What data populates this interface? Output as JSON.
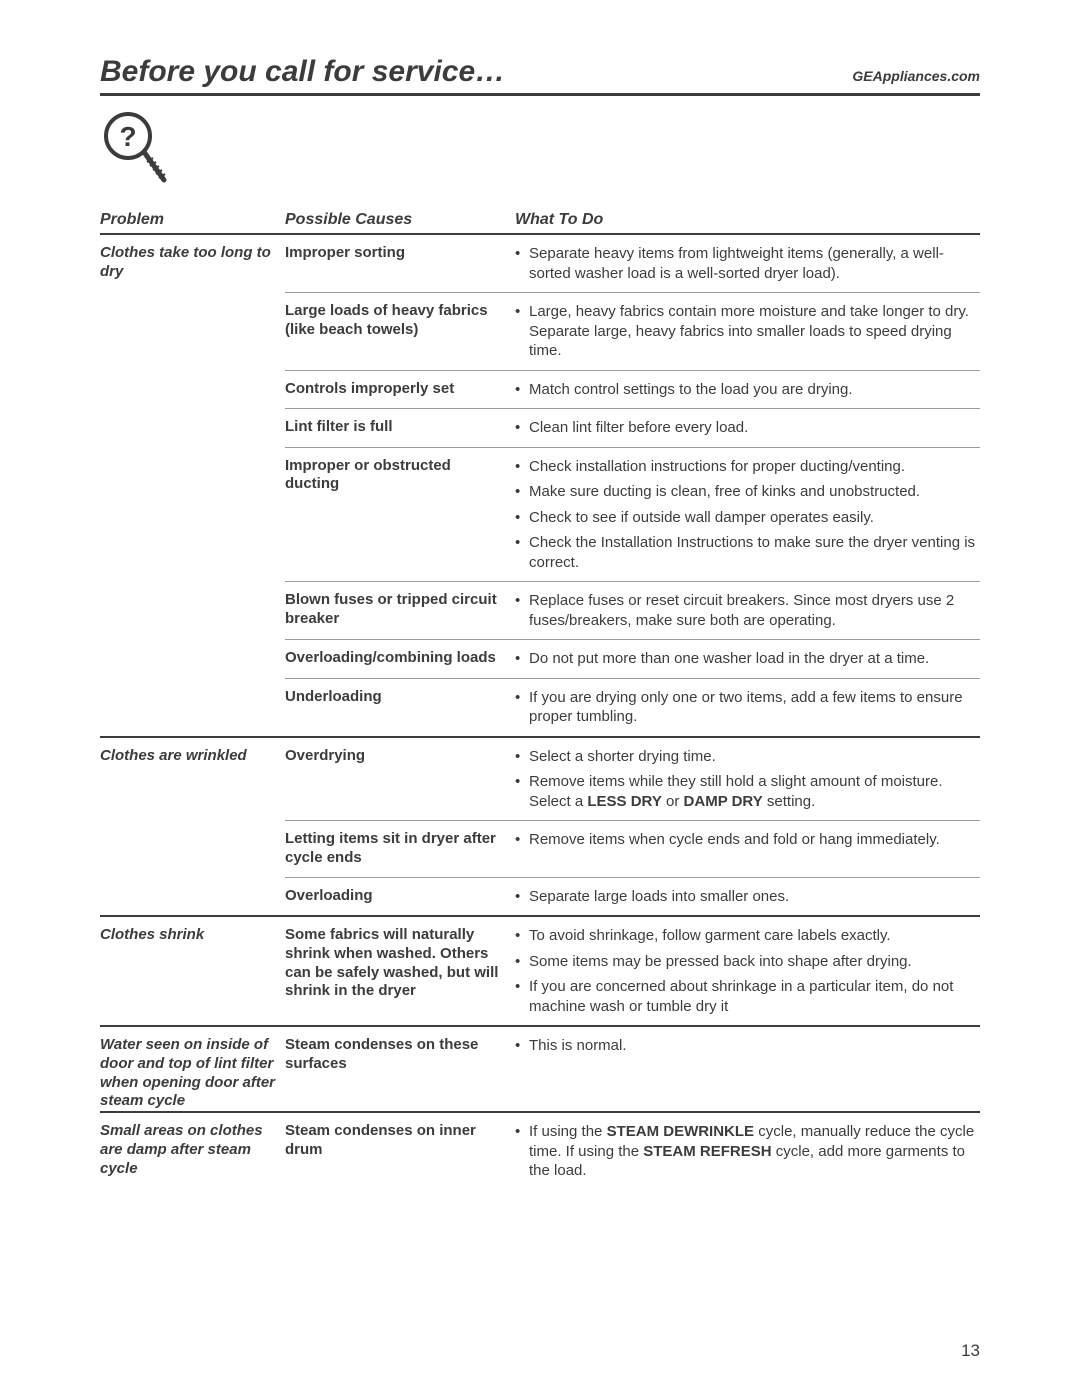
{
  "header": {
    "title": "Before you call for service…",
    "site": "GEAppliances.com"
  },
  "columns": {
    "problem": "Problem",
    "causes": "Possible Causes",
    "todo": "What To Do"
  },
  "page_number": "13",
  "problems": [
    {
      "label": "Clothes take too long to dry",
      "causes": [
        {
          "label": "Improper sorting",
          "todo": [
            "Separate heavy items from lightweight items (generally, a well-sorted washer load is a well-sorted dryer load)."
          ]
        },
        {
          "label": "Large loads of heavy fabrics (like beach towels)",
          "todo": [
            "Large, heavy fabrics contain more moisture and take longer to dry. Separate large, heavy fabrics into smaller loads to speed drying time."
          ]
        },
        {
          "label": "Controls improperly set",
          "todo": [
            "Match control settings to the load you are drying."
          ]
        },
        {
          "label": "Lint filter is full",
          "todo": [
            "Clean lint filter before every load."
          ]
        },
        {
          "label": "Improper or obstructed ducting",
          "todo": [
            "Check installation instructions for proper ducting/venting.",
            "Make sure ducting is clean, free of kinks and unobstructed.",
            "Check to see if outside wall damper operates easily.",
            "Check the Installation Instructions to make sure the dryer venting is correct."
          ]
        },
        {
          "label": "Blown fuses or tripped circuit breaker",
          "todo": [
            "Replace fuses or reset circuit breakers. Since most dryers use 2 fuses/breakers, make sure both are operating."
          ]
        },
        {
          "label": "Overloading/combining loads",
          "todo": [
            "Do not put more than one washer load in the dryer at a time."
          ]
        },
        {
          "label": "Underloading",
          "todo": [
            "If you are drying only one or two items, add a few items to ensure proper tumbling."
          ]
        }
      ]
    },
    {
      "label": "Clothes are wrinkled",
      "causes": [
        {
          "label": "Overdrying",
          "todo": [
            "Select a shorter drying time.",
            "Remove items while they still hold a slight amount of moisture. Select a <b>LESS DRY</b> or <b>DAMP DRY</b> setting."
          ]
        },
        {
          "label": "Letting items sit in dryer after cycle ends",
          "todo": [
            "Remove items when cycle ends and fold or hang immediately."
          ]
        },
        {
          "label": "Overloading",
          "todo": [
            "Separate large loads into smaller ones."
          ]
        }
      ]
    },
    {
      "label": "Clothes shrink",
      "causes": [
        {
          "label": "Some fabrics will naturally shrink when washed. Others can be safely washed, but will shrink in the dryer",
          "todo": [
            "To avoid shrinkage, follow garment care labels exactly.",
            "Some items may be pressed back into shape after drying.",
            "If you are concerned about shrinkage in a particular item, do not machine wash or tumble dry it"
          ]
        }
      ]
    },
    {
      "label": "Water seen on inside of door and top of lint filter when opening door after steam cycle",
      "causes": [
        {
          "label": "Steam condenses on these surfaces",
          "todo": [
            "This is normal."
          ]
        }
      ]
    },
    {
      "label": "Small areas on clothes are damp after steam cycle",
      "causes": [
        {
          "label": "Steam condenses on inner drum",
          "todo": [
            "If using the <b>STEAM DEWRINKLE</b> cycle, manually reduce the cycle time. If using the <b>STEAM REFRESH</b> cycle, add more garments to the load."
          ]
        }
      ]
    }
  ]
}
